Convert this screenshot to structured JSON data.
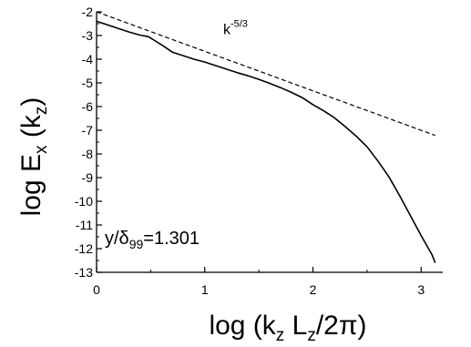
{
  "chart_data": {
    "type": "line",
    "xlabel_parts": {
      "pre": "log (k",
      "sub1": "z",
      "mid": " L",
      "sub2": "z",
      "post": "/2π)"
    },
    "ylabel_parts": {
      "pre": "log E",
      "sub1": "x",
      "mid": " (k",
      "sub2": "z",
      "post": ")"
    },
    "xlim": [
      0,
      3.2
    ],
    "ylim": [
      -13,
      -2
    ],
    "xticks": [
      0,
      1,
      2,
      3
    ],
    "yticks": [
      -2,
      -3,
      -4,
      -5,
      -6,
      -7,
      -8,
      -9,
      -10,
      -11,
      -12,
      -13
    ],
    "xtick_labels": [
      "0",
      "1",
      "2",
      "3"
    ],
    "ytick_labels": [
      "-2",
      "-3",
      "-4",
      "-5",
      "-6",
      "-7",
      "-8",
      "-9",
      "-10",
      "-11",
      "-12",
      "-13"
    ],
    "series": [
      {
        "style": "solid",
        "x": [
          0,
          0.1,
          0.2,
          0.3,
          0.4,
          0.48,
          0.55,
          0.62,
          0.7,
          0.8,
          0.9,
          1.0,
          1.1,
          1.2,
          1.3,
          1.4,
          1.5,
          1.6,
          1.7,
          1.8,
          1.9,
          2.0,
          2.1,
          2.2,
          2.3,
          2.4,
          2.5,
          2.6,
          2.7,
          2.8,
          2.9,
          3.0,
          3.05,
          3.1,
          3.13
        ],
        "y": [
          -2.4,
          -2.55,
          -2.7,
          -2.85,
          -2.98,
          -3.05,
          -3.25,
          -3.45,
          -3.7,
          -3.85,
          -4.0,
          -4.12,
          -4.27,
          -4.42,
          -4.57,
          -4.7,
          -4.85,
          -5.02,
          -5.2,
          -5.4,
          -5.62,
          -5.92,
          -6.18,
          -6.48,
          -6.85,
          -7.25,
          -7.7,
          -8.3,
          -8.95,
          -9.75,
          -10.6,
          -11.45,
          -11.85,
          -12.25,
          -12.6
        ]
      },
      {
        "style": "dashed",
        "x": [
          0,
          3.13
        ],
        "y": [
          -2.0,
          -7.22
        ]
      }
    ],
    "annotations": {
      "slope": {
        "base": "k",
        "sup": "-5/3",
        "x": 1.17,
        "y": -2.95
      },
      "position": {
        "pre": "y/δ",
        "sub": "99",
        "post": "=1.301",
        "x": 0.0,
        "y": -11.8
      }
    }
  }
}
